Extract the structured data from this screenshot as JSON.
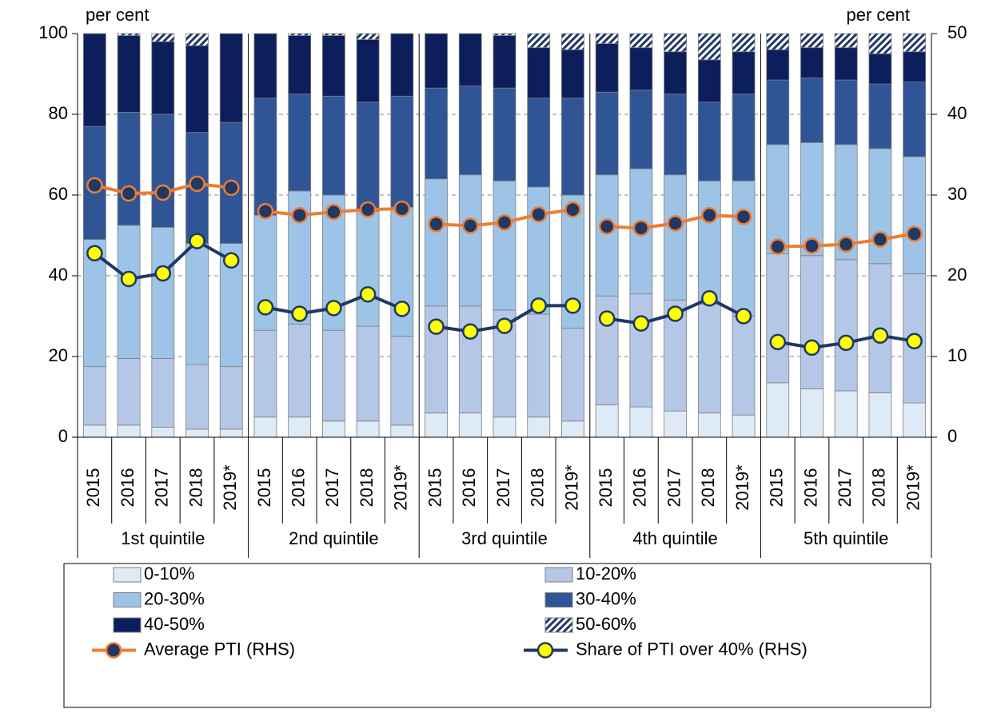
{
  "chart_data": {
    "type": "bar",
    "stacked": true,
    "ylabel": "per cent",
    "y2label": "per cent",
    "groups": [
      "1st quintile",
      "2nd quintile",
      "3rd quintile",
      "4th quintile",
      "5th quintile"
    ],
    "categories": [
      "2015",
      "2016",
      "2017",
      "2018",
      "2019*",
      "2015",
      "2016",
      "2017",
      "2018",
      "2019*",
      "2015",
      "2016",
      "2017",
      "2018",
      "2019*",
      "2015",
      "2016",
      "2017",
      "2018",
      "2019*",
      "2015",
      "2016",
      "2017",
      "2018",
      "2019*"
    ],
    "ylim": [
      0,
      100
    ],
    "yticks": [
      0,
      20,
      40,
      60,
      80,
      100
    ],
    "y2lim": [
      0,
      50
    ],
    "y2ticks": [
      0,
      10,
      20,
      30,
      40,
      50
    ],
    "grid": true,
    "series": [
      {
        "name": "0-10%",
        "color": "#deebf7",
        "values": [
          3,
          3,
          2.5,
          2,
          2,
          5,
          5,
          4,
          4,
          3,
          6,
          6,
          5,
          5,
          4,
          8,
          7.5,
          6.5,
          6,
          5.5,
          13.5,
          12,
          11.5,
          11,
          8.5
        ]
      },
      {
        "name": "10-20%",
        "color": "#b4c7e7",
        "values": [
          14.5,
          16.5,
          17,
          16,
          15.5,
          21.5,
          23,
          22.5,
          23.5,
          22,
          26.5,
          26.5,
          26.5,
          25.5,
          23,
          27,
          28,
          27.5,
          27,
          24.5,
          32,
          33,
          32.5,
          32,
          32
        ]
      },
      {
        "name": "20-30%",
        "color": "#9dc3e6",
        "values": [
          31.5,
          33,
          32.5,
          30,
          30.5,
          28.5,
          33,
          33.5,
          28.5,
          32,
          31.5,
          32.5,
          32,
          31.5,
          33,
          30,
          31,
          31,
          30.5,
          33.5,
          27,
          28,
          28.5,
          28.5,
          29
        ]
      },
      {
        "name": "30-40%",
        "color": "#2f5597",
        "values": [
          28,
          28,
          28,
          27.5,
          30,
          29,
          24,
          24.5,
          27,
          27.5,
          22.5,
          22,
          23,
          22,
          24,
          20.5,
          19.5,
          20,
          19.5,
          21.5,
          16,
          16,
          16,
          16,
          18.5
        ]
      },
      {
        "name": "40-50%",
        "color": "#0c1f5c",
        "values": [
          23,
          19,
          18,
          21.5,
          22,
          16,
          14.5,
          15,
          15.5,
          15.5,
          13.5,
          13,
          13,
          12.5,
          12,
          12,
          10.5,
          10.5,
          10.5,
          10.5,
          7.5,
          7.5,
          8,
          7.5,
          7.5
        ]
      },
      {
        "name": "50-60%",
        "color": "#1f3864",
        "hatch": true,
        "values": [
          0,
          0.5,
          2,
          3,
          0,
          0,
          0.5,
          0.5,
          1.5,
          0,
          0,
          0,
          0.5,
          3.5,
          4,
          2.5,
          3.5,
          4.5,
          6.5,
          4.5,
          4,
          3.5,
          3.5,
          5,
          4.5
        ]
      },
      {
        "name": "Average PTI (RHS)",
        "type": "line",
        "axis": "y2",
        "color": "#ed7d31",
        "marker_color": "#1f3864",
        "values": [
          31.2,
          30.2,
          30.3,
          31.4,
          30.9,
          28.0,
          27.5,
          27.9,
          28.2,
          28.3,
          26.4,
          26.2,
          26.6,
          27.6,
          28.2,
          26.1,
          25.9,
          26.5,
          27.5,
          27.3,
          23.6,
          23.7,
          23.9,
          24.5,
          25.2
        ]
      },
      {
        "name": "Share of PTI over 40% (RHS)",
        "type": "line",
        "axis": "y2",
        "color": "#1f3864",
        "marker_color": "#ffff00",
        "values": [
          22.8,
          19.6,
          20.3,
          24.3,
          21.9,
          16.1,
          15.3,
          16.0,
          17.7,
          15.9,
          13.7,
          13.1,
          13.8,
          16.3,
          16.3,
          14.7,
          14.1,
          15.3,
          17.2,
          15.0,
          11.8,
          11.1,
          11.7,
          12.6,
          11.9
        ]
      }
    ]
  }
}
